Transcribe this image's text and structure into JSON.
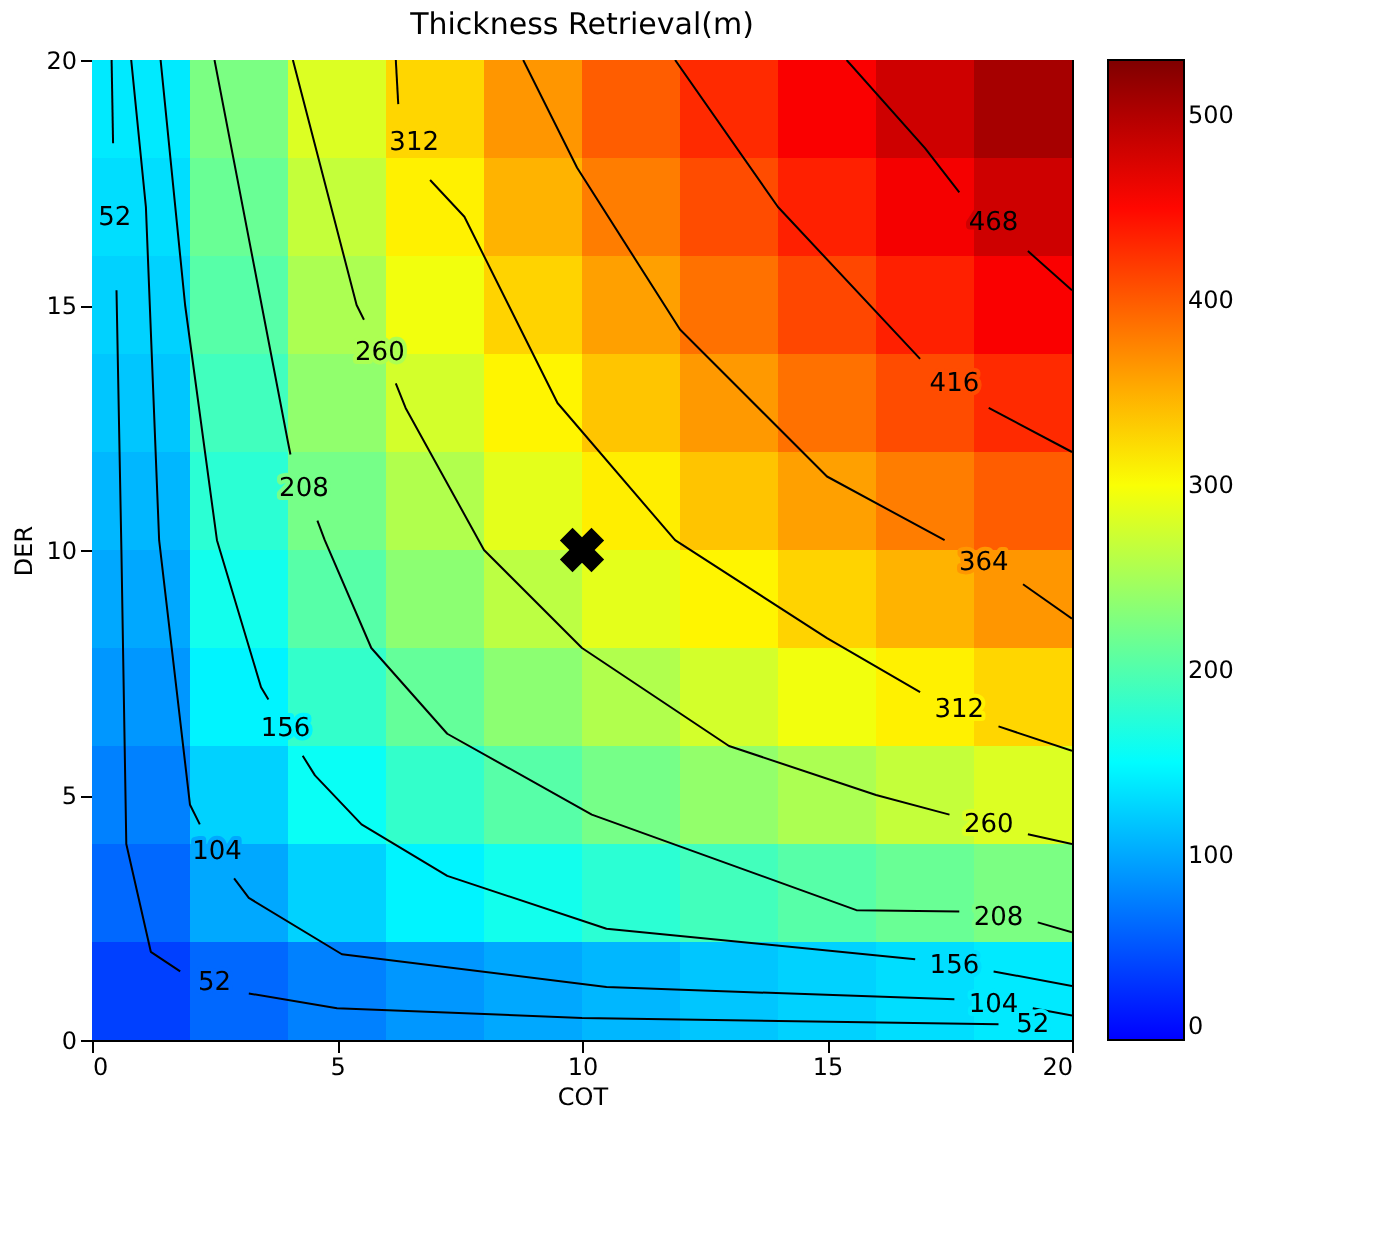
{
  "chart_data": {
    "type": "heatmap",
    "title": "Thickness Retrieval(m)",
    "xlabel": "COT",
    "ylabel": "DER",
    "x": [
      1,
      3,
      5,
      7,
      9,
      11,
      13,
      15,
      17,
      19
    ],
    "y": [
      19,
      17,
      15,
      13,
      11,
      9,
      7,
      5,
      3,
      1
    ],
    "cells": [
      [
        139,
        225,
        282,
        327,
        365,
        399,
        429,
        457,
        483,
        507
      ],
      [
        132,
        214,
        268,
        311,
        348,
        380,
        409,
        435,
        460,
        483
      ],
      [
        125,
        203,
        254,
        295,
        329,
        359,
        387,
        412,
        435,
        457
      ],
      [
        118,
        190,
        238,
        277,
        309,
        337,
        363,
        387,
        409,
        429
      ],
      [
        109,
        177,
        222,
        257,
        287,
        313,
        338,
        359,
        380,
        399
      ],
      [
        100,
        162,
        203,
        235,
        263,
        287,
        309,
        329,
        348,
        365
      ],
      [
        90,
        145,
        182,
        211,
        235,
        257,
        277,
        295,
        311,
        327
      ],
      [
        77,
        125,
        157,
        182,
        203,
        222,
        239,
        254,
        268,
        282
      ],
      [
        62,
        100,
        125,
        145,
        162,
        177,
        191,
        203,
        214,
        225
      ],
      [
        38,
        62,
        77,
        90,
        100,
        109,
        118,
        125,
        132,
        139
      ]
    ],
    "clim": [
      0,
      530
    ],
    "cticks": [
      0,
      100,
      200,
      300,
      400,
      500
    ],
    "xlim": [
      0,
      20
    ],
    "ylim": [
      0,
      20
    ],
    "xticks": [
      0,
      5,
      10,
      15,
      20
    ],
    "yticks": [
      0,
      5,
      10,
      15,
      20
    ],
    "grid": false,
    "series": [
      {
        "type": "line",
        "color": "#000000",
        "x": [
          0.4,
          0.43,
          null,
          0.5,
          0.6,
          0.7,
          1.2,
          1.8,
          null,
          3.2,
          5,
          10,
          18.5,
          null
        ],
        "values": [
          20,
          18.3,
          null,
          15.3,
          10,
          4,
          1.8,
          1.4,
          null,
          0.95,
          0.65,
          0.45,
          0.32,
          null
        ]
      },
      {
        "type": "line",
        "color": "#000000",
        "x": [
          0.8,
          1.1,
          1.37,
          2.0,
          2.2,
          null,
          2.9,
          3.2,
          5.1,
          10.5,
          17.6,
          null,
          19.2,
          20
        ],
        "values": [
          20,
          17,
          10.2,
          4.8,
          4.4,
          null,
          3.3,
          2.9,
          1.75,
          1.08,
          0.83,
          null,
          0.65,
          0.5
        ]
      },
      {
        "type": "line",
        "color": "#000000",
        "x": [
          1.4,
          1.9,
          2.55,
          3.45,
          3.6,
          null,
          4.3,
          4.55,
          5.5,
          7.25,
          10.5,
          16.8,
          null,
          18.4,
          20
        ],
        "values": [
          20,
          15,
          10.2,
          7.2,
          6.95,
          null,
          5.8,
          5.4,
          4.4,
          3.35,
          2.27,
          1.65,
          null,
          1.4,
          1.1
        ]
      },
      {
        "type": "line",
        "color": "#000000",
        "x": [
          2.5,
          4.0,
          4.05,
          null,
          4.6,
          4.75,
          5.7,
          7.25,
          10.2,
          15.6,
          17.7,
          null,
          19.3,
          20
        ],
        "values": [
          20,
          12.2,
          11.95,
          null,
          10.6,
          10.2,
          8.0,
          6.25,
          4.6,
          2.65,
          2.62,
          null,
          2.4,
          2.2
        ]
      },
      {
        "type": "line",
        "color": "#000000",
        "x": [
          4.1,
          5.4,
          5.55,
          null,
          6.2,
          6.4,
          8,
          10,
          13,
          16,
          17.5,
          null,
          19.1,
          20
        ],
        "values": [
          20,
          15,
          14.7,
          null,
          13.4,
          12.9,
          10,
          8,
          6,
          5,
          4.6,
          null,
          4.2,
          4.0
        ]
      },
      {
        "type": "line",
        "color": "#000000",
        "x": [
          6.2,
          6.25,
          null,
          6.9,
          7.6,
          9.5,
          11.9,
          15,
          16.9,
          null,
          18.5,
          20
        ],
        "values": [
          20,
          19.1,
          null,
          17.55,
          16.8,
          13,
          10.2,
          8.2,
          7.1,
          null,
          6.4,
          5.9
        ]
      },
      {
        "type": "line",
        "color": "#000000",
        "x": [
          8.8,
          9.9,
          12,
          15,
          17.4,
          null,
          19,
          20
        ],
        "values": [
          20,
          17.8,
          14.5,
          11.5,
          10.2,
          null,
          9.3,
          8.6
        ]
      },
      {
        "type": "line",
        "color": "#000000",
        "x": [
          11.9,
          14,
          16.9,
          null,
          18.3,
          20
        ],
        "values": [
          20,
          17,
          13.9,
          null,
          12.9,
          12.0
        ]
      },
      {
        "type": "line",
        "color": "#000000",
        "x": [
          15.4,
          17,
          17.7,
          null,
          19.1,
          20
        ],
        "values": [
          20,
          18.2,
          17.3,
          null,
          16.1,
          15.3
        ]
      },
      {
        "type": "scatter",
        "x": [
          10
        ],
        "values": [
          10
        ],
        "color": "#000000",
        "marker": "cross"
      }
    ],
    "annotations": [
      "52",
      "52",
      "52",
      "104",
      "104",
      "156",
      "156",
      "208",
      "208",
      "260",
      "260",
      "312",
      "312",
      "364",
      "416",
      "468"
    ]
  }
}
